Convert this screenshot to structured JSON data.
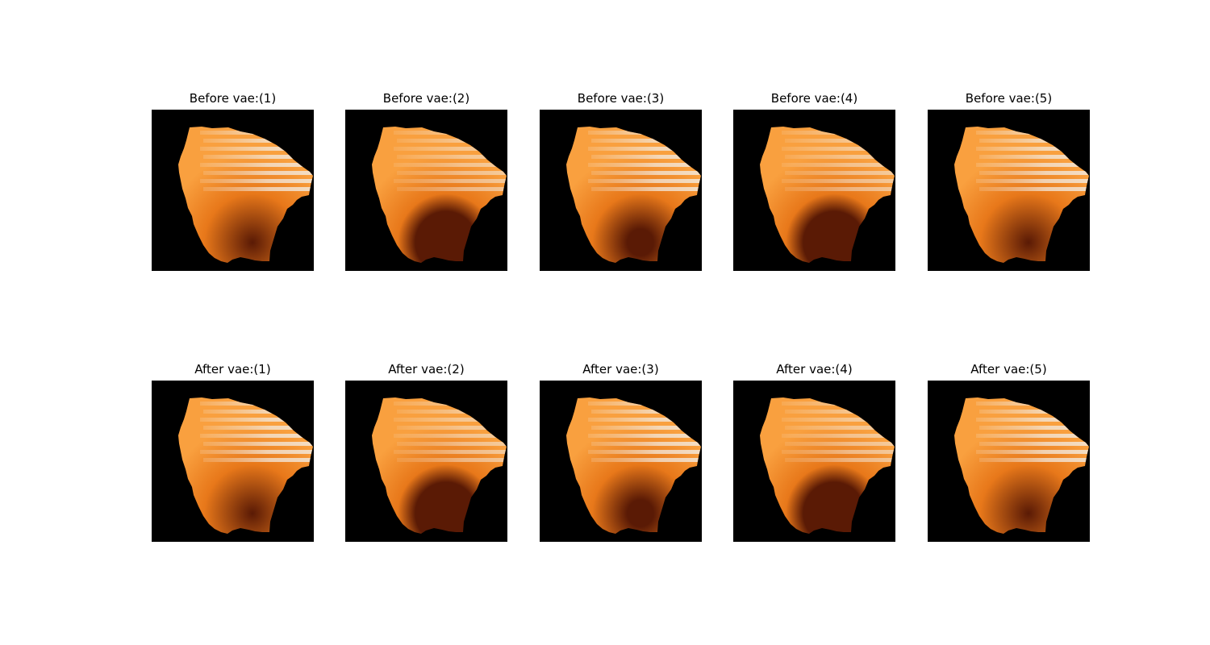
{
  "rows": [
    {
      "name": "before",
      "panels": [
        {
          "title": "Before vae:(1)",
          "variant": "dark"
        },
        {
          "title": "Before vae:(2)",
          "variant": "light"
        },
        {
          "title": "Before vae:(3)",
          "variant": "medium"
        },
        {
          "title": "Before vae:(4)",
          "variant": "light"
        },
        {
          "title": "Before vae:(5)",
          "variant": "dark"
        }
      ]
    },
    {
      "name": "after",
      "panels": [
        {
          "title": "After vae:(1)",
          "variant": "dark"
        },
        {
          "title": "After vae:(2)",
          "variant": "light"
        },
        {
          "title": "After vae:(3)",
          "variant": "medium"
        },
        {
          "title": "After vae:(4)",
          "variant": "light"
        },
        {
          "title": "After vae:(5)",
          "variant": "dark"
        }
      ]
    }
  ],
  "colors": {
    "background": "#000000",
    "tissue_light": "#f9a03f",
    "tissue_mid": "#e8781a",
    "tissue_dark": "#5a1a05",
    "stripe": "#f2ede6"
  }
}
